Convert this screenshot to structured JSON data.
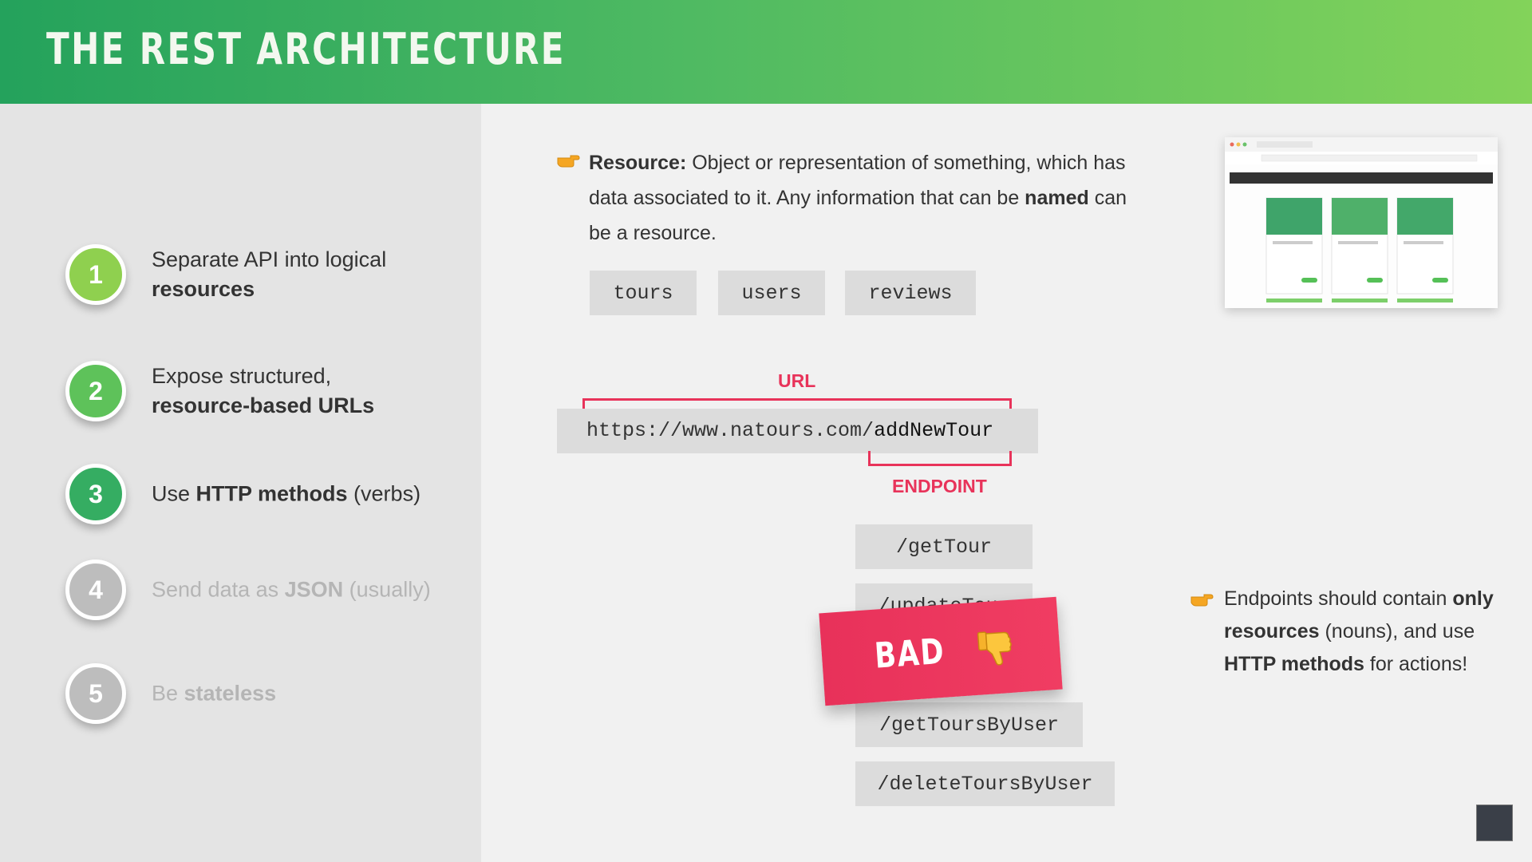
{
  "header": {
    "title": "THE REST ARCHITECTURE"
  },
  "colors": {
    "accent_red": "#e8335a",
    "header_start": "#24a25c",
    "header_end": "#83d35a"
  },
  "steps": [
    {
      "number": "1",
      "text": "Separate API into logical ",
      "bold": "resources",
      "after": ""
    },
    {
      "number": "2",
      "text": "Expose structured, ",
      "bold": "resource-based URLs",
      "after": ""
    },
    {
      "number": "3",
      "text": "Use ",
      "bold": "HTTP methods",
      "after": " (verbs)"
    },
    {
      "number": "4",
      "text": "Send data as ",
      "bold": "JSON",
      "after": " (usually)"
    },
    {
      "number": "5",
      "text": "Be ",
      "bold": "stateless",
      "after": ""
    }
  ],
  "resource": {
    "term": "Resource:",
    "part1": " Object or representation of something, which has data associated to it. Any information that can be ",
    "bold": "named",
    "part2": " can be a resource."
  },
  "resource_chips": [
    "tours",
    "users",
    "reviews"
  ],
  "url": {
    "label": "URL",
    "base": "https://www.natours.com/",
    "endpoint": "addNewTour",
    "endpoint_label": "ENDPOINT"
  },
  "endpoints": [
    "/getTour",
    "/updateTour",
    "/getToursByUser",
    "/deleteToursByUser"
  ],
  "bad_label": "BAD",
  "icons": {
    "pointer": "pointing-hand-icon",
    "thumbs_down": "thumbs-down-icon"
  },
  "note": {
    "part1": "Endpoints should contain ",
    "bold1": "only resources",
    "part2": " (nouns), and use ",
    "bold2": "HTTP methods",
    "part3": " for actions!"
  }
}
